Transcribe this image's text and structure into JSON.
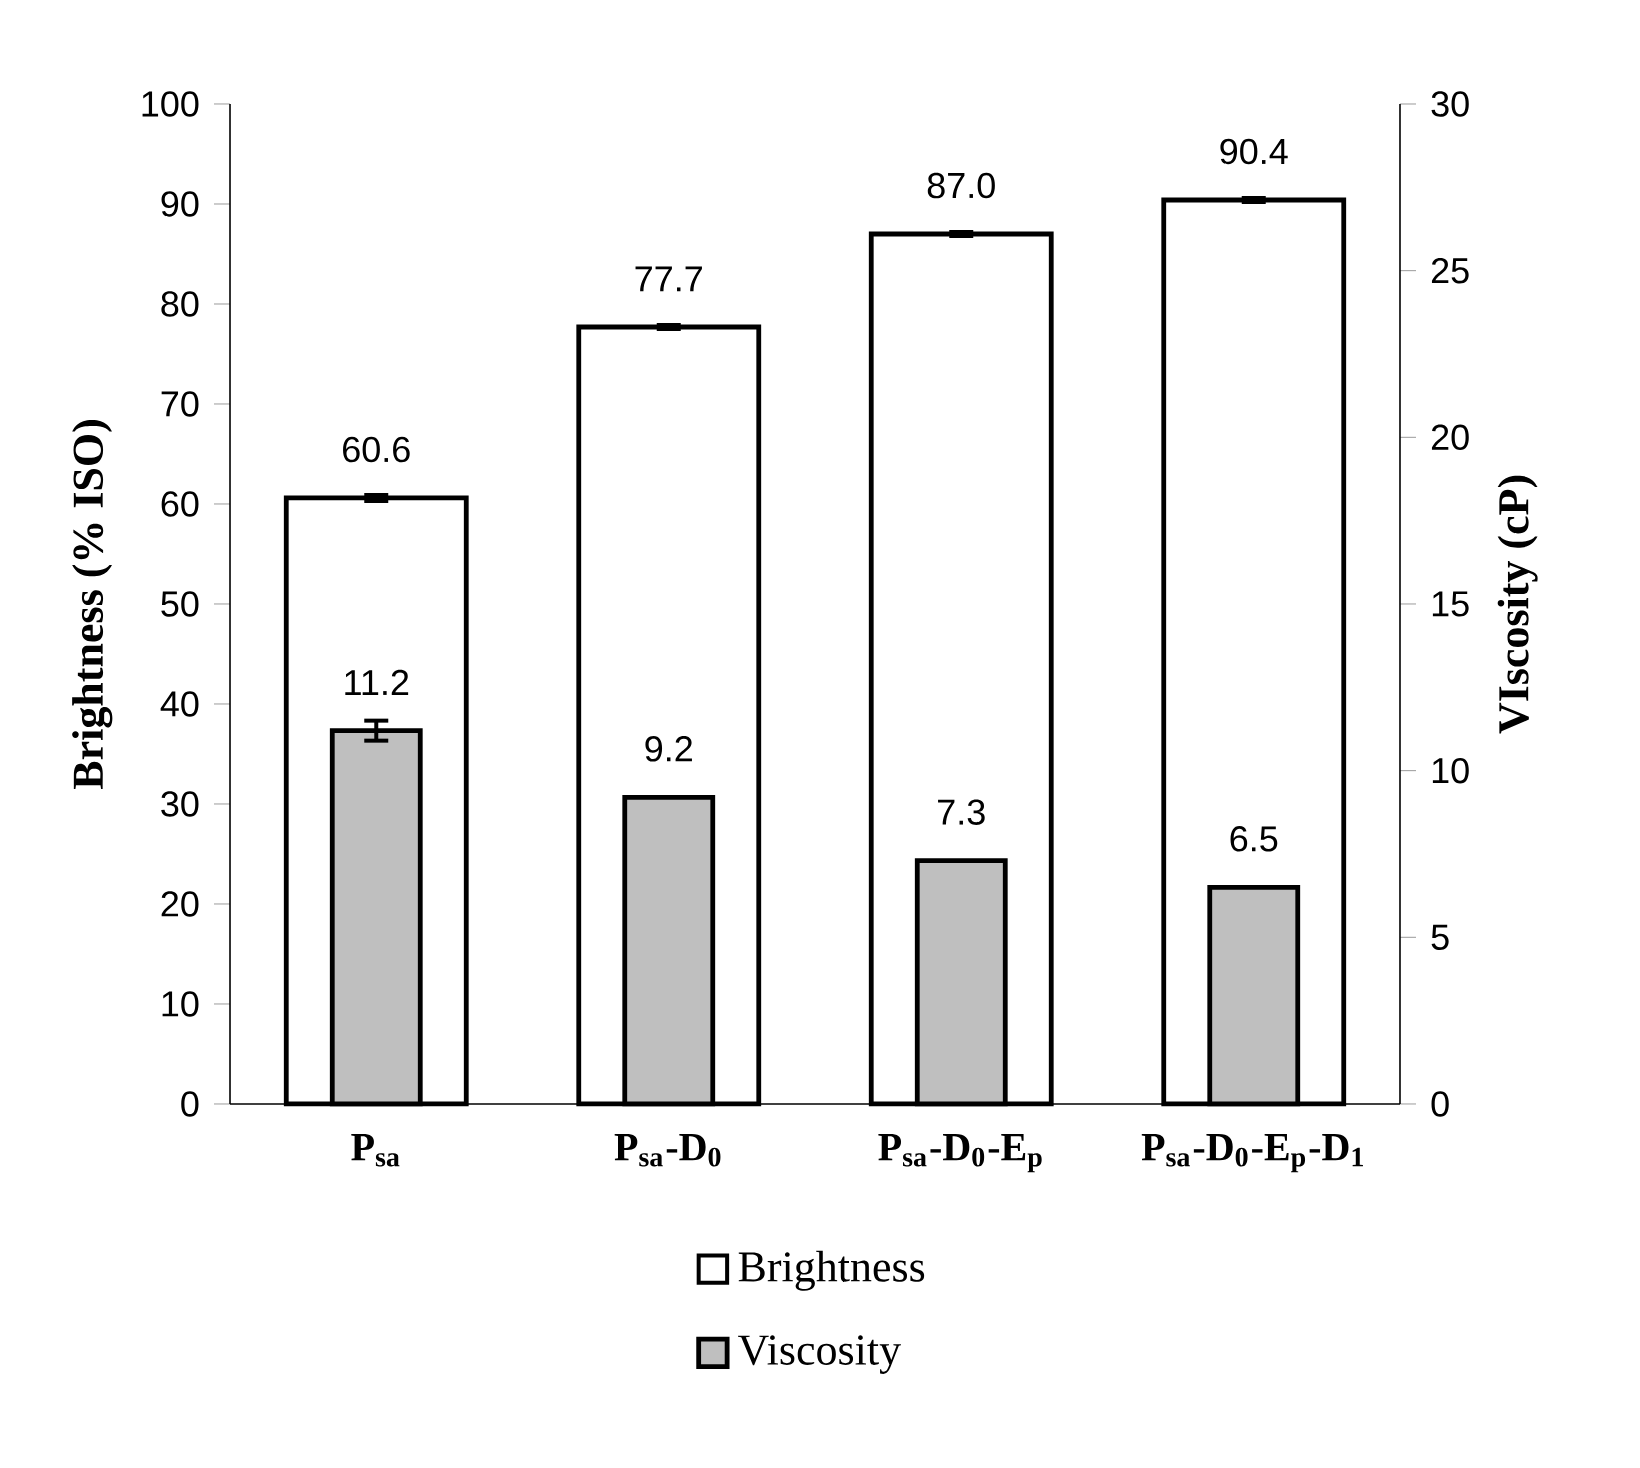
{
  "chart_data": {
    "type": "bar",
    "categories": [
      "P$_{sa}$",
      "P$_{sa}$-D$_{0}$",
      "P$_{sa}$-D$_{0}$-E$_{p}$",
      "P$_{sa}$-D$_{0}$-E$_{p}$-D$_{1}$"
    ],
    "ylabel": "Brightness (% ISO)",
    "y2label": "VIscosity (cP)",
    "ylim": [
      0,
      100
    ],
    "yticks": [
      0,
      10,
      20,
      30,
      40,
      50,
      60,
      70,
      80,
      90,
      100
    ],
    "y2lim": [
      0,
      30
    ],
    "y2ticks": [
      0,
      5,
      10,
      15,
      20,
      25,
      30
    ],
    "series": [
      {
        "name": "Brightness",
        "color": "#ffffff",
        "values": [
          60.6,
          77.7,
          87.0,
          90.4
        ],
        "value_labels": [
          "60.6",
          "77.7",
          "87.0",
          "90.4"
        ],
        "errors": [
          0.3,
          0.2,
          0.2,
          0.2
        ]
      },
      {
        "name": "Viscosity",
        "color": "#bfbfbf",
        "axis": "y2",
        "values": [
          11.2,
          9.2,
          7.3,
          6.5
        ],
        "value_labels": [
          "11.2",
          "9.2",
          "7.3",
          "6.5"
        ],
        "errors": [
          0.3,
          null,
          null,
          null
        ]
      }
    ],
    "legend": "bottom"
  }
}
